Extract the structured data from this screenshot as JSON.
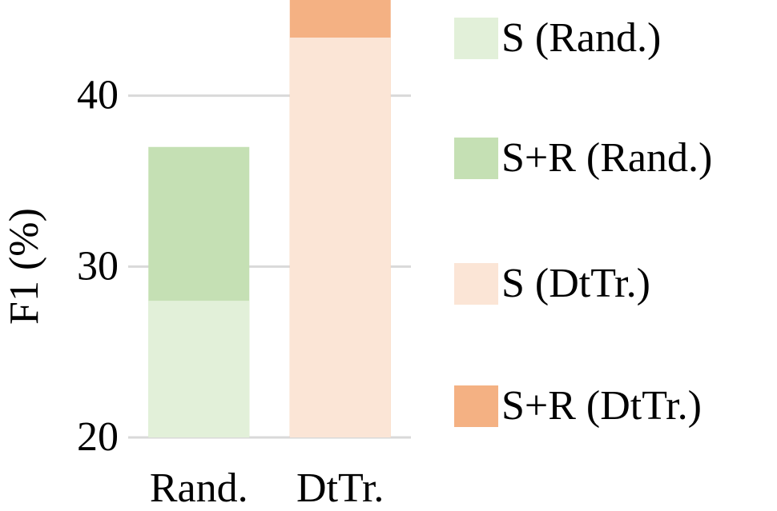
{
  "chart_data": {
    "type": "bar",
    "y_label": "F1 (%)",
    "categories": [
      "Rand.",
      "DtTr."
    ],
    "series": [
      {
        "name": "S (Rand.)",
        "color": "#e2f0d9",
        "values": [
          28,
          null
        ]
      },
      {
        "name": "S+R (Rand.)",
        "color": "#c5e0b4",
        "values": [
          37,
          null
        ]
      },
      {
        "name": "S (DtTr.)",
        "color": "#fbe5d6",
        "values": [
          null,
          43.4
        ]
      },
      {
        "name": "S+R (DtTr.)",
        "color": "#f4b183",
        "values": [
          null,
          45.6
        ]
      }
    ],
    "ylim": [
      20,
      45.6
    ],
    "yticks": [
      20,
      30,
      40
    ],
    "grid": true,
    "legend": "right"
  }
}
